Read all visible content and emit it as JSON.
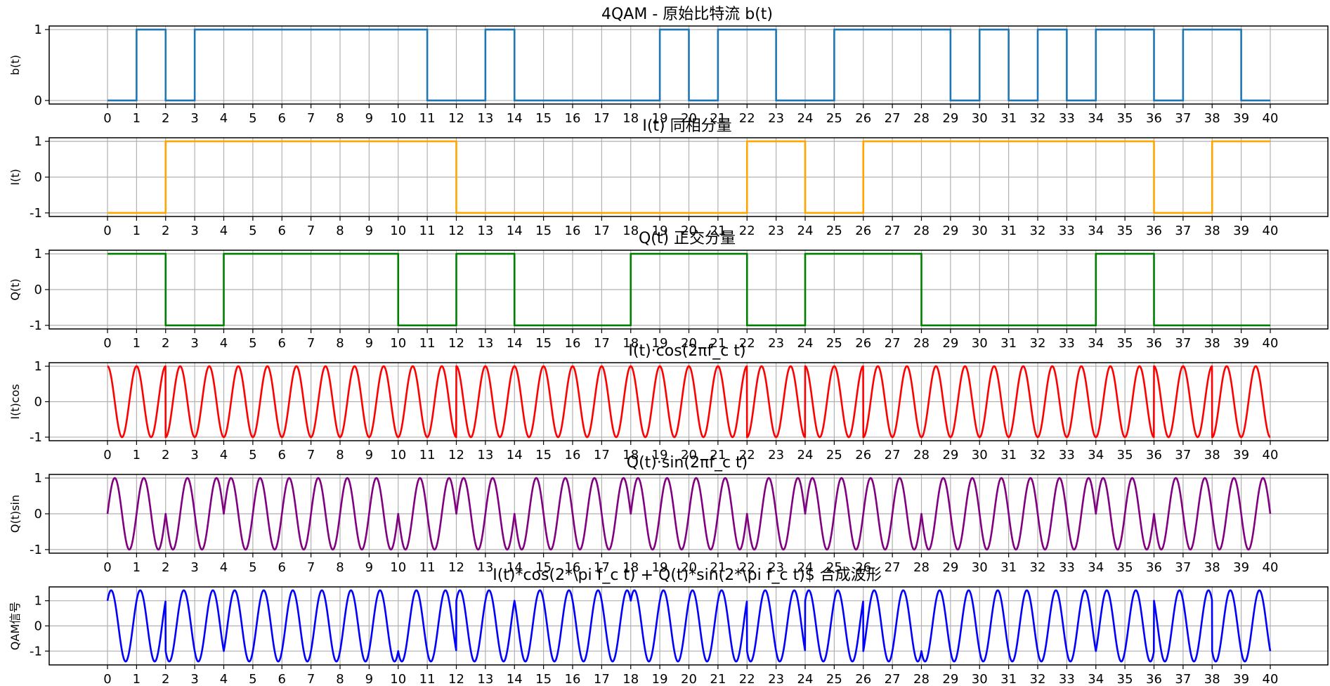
{
  "chart_data": [
    {
      "type": "line",
      "title": "4QAM - 原始比特流 b(t)",
      "ylabel": "b(t)",
      "xlim": [
        0,
        40
      ],
      "ylim": [
        -0.05,
        1.05
      ],
      "xticks": [
        0,
        1,
        2,
        3,
        4,
        5,
        6,
        7,
        8,
        9,
        10,
        11,
        12,
        13,
        14,
        15,
        16,
        17,
        18,
        19,
        20,
        21,
        22,
        23,
        24,
        25,
        26,
        27,
        28,
        29,
        30,
        31,
        32,
        33,
        34,
        35,
        36,
        37,
        38,
        39,
        40
      ],
      "yticks": [
        0,
        1
      ],
      "ytick_labels": [
        "0",
        "1"
      ],
      "grid": true,
      "color": "#1f77b4",
      "series": [
        {
          "kind": "step",
          "values": [
            0,
            1,
            0,
            1,
            1,
            1,
            1,
            1,
            1,
            1,
            1,
            0,
            0,
            1,
            0,
            0,
            0,
            0,
            0,
            1,
            0,
            1,
            1,
            0,
            0,
            1,
            1,
            1,
            1,
            0,
            1,
            0,
            1,
            0,
            1,
            1,
            0,
            1,
            1,
            0
          ]
        }
      ]
    },
    {
      "type": "line",
      "title": "I(t) 同相分量",
      "ylabel": "I(t)",
      "xlim": [
        0,
        40
      ],
      "ylim": [
        -1.1,
        1.1
      ],
      "xticks": [
        0,
        1,
        2,
        3,
        4,
        5,
        6,
        7,
        8,
        9,
        10,
        11,
        12,
        13,
        14,
        15,
        16,
        17,
        18,
        19,
        20,
        21,
        22,
        23,
        24,
        25,
        26,
        27,
        28,
        29,
        30,
        31,
        32,
        33,
        34,
        35,
        36,
        37,
        38,
        39,
        40
      ],
      "yticks": [
        -1,
        0,
        1
      ],
      "ytick_labels": [
        "-1",
        "0",
        "1"
      ],
      "grid": true,
      "color": "#ffa500",
      "series": [
        {
          "kind": "step",
          "values": [
            -1,
            -1,
            1,
            1,
            1,
            1,
            1,
            1,
            1,
            1,
            1,
            1,
            -1,
            -1,
            -1,
            -1,
            -1,
            -1,
            -1,
            -1,
            -1,
            -1,
            1,
            1,
            -1,
            -1,
            1,
            1,
            1,
            1,
            1,
            1,
            1,
            1,
            1,
            1,
            -1,
            -1,
            1,
            1
          ]
        }
      ]
    },
    {
      "type": "line",
      "title": "Q(t) 正交分量",
      "ylabel": "Q(t)",
      "xlim": [
        0,
        40
      ],
      "ylim": [
        -1.1,
        1.1
      ],
      "xticks": [
        0,
        1,
        2,
        3,
        4,
        5,
        6,
        7,
        8,
        9,
        10,
        11,
        12,
        13,
        14,
        15,
        16,
        17,
        18,
        19,
        20,
        21,
        22,
        23,
        24,
        25,
        26,
        27,
        28,
        29,
        30,
        31,
        32,
        33,
        34,
        35,
        36,
        37,
        38,
        39,
        40
      ],
      "yticks": [
        -1,
        0,
        1
      ],
      "ytick_labels": [
        "-1",
        "0",
        "1"
      ],
      "grid": true,
      "color": "#008000",
      "series": [
        {
          "kind": "step",
          "values": [
            1,
            1,
            -1,
            -1,
            1,
            1,
            1,
            1,
            1,
            1,
            -1,
            -1,
            1,
            1,
            -1,
            -1,
            -1,
            -1,
            1,
            1,
            1,
            1,
            -1,
            -1,
            1,
            1,
            1,
            1,
            -1,
            -1,
            -1,
            -1,
            -1,
            -1,
            1,
            1,
            -1,
            -1,
            -1,
            -1
          ]
        }
      ]
    },
    {
      "type": "line",
      "title": "I(t)·cos(2πf_c t)",
      "ylabel": "I(t)cos",
      "xlim": [
        0,
        40
      ],
      "ylim": [
        -1.1,
        1.1
      ],
      "xticks": [
        0,
        1,
        2,
        3,
        4,
        5,
        6,
        7,
        8,
        9,
        10,
        11,
        12,
        13,
        14,
        15,
        16,
        17,
        18,
        19,
        20,
        21,
        22,
        23,
        24,
        25,
        26,
        27,
        28,
        29,
        30,
        31,
        32,
        33,
        34,
        35,
        36,
        37,
        38,
        39,
        40
      ],
      "yticks": [
        -1,
        0,
        1
      ],
      "ytick_labels": [
        "-1",
        "0",
        "1"
      ],
      "grid": true,
      "color": "#ff0000",
      "series": [
        {
          "kind": "modulated",
          "carrier": "cos",
          "fc": 1,
          "amplitude": "I(t)"
        }
      ]
    },
    {
      "type": "line",
      "title": "Q(t)·sin(2πf_c t)",
      "ylabel": "Q(t)sin",
      "xlim": [
        0,
        40
      ],
      "ylim": [
        -1.1,
        1.1
      ],
      "xticks": [
        0,
        1,
        2,
        3,
        4,
        5,
        6,
        7,
        8,
        9,
        10,
        11,
        12,
        13,
        14,
        15,
        16,
        17,
        18,
        19,
        20,
        21,
        22,
        23,
        24,
        25,
        26,
        27,
        28,
        29,
        30,
        31,
        32,
        33,
        34,
        35,
        36,
        37,
        38,
        39,
        40
      ],
      "yticks": [
        -1,
        0,
        1
      ],
      "ytick_labels": [
        "-1",
        "0",
        "1"
      ],
      "grid": true,
      "color": "#800080",
      "series": [
        {
          "kind": "modulated",
          "carrier": "sin",
          "fc": 1,
          "amplitude": "Q(t)"
        }
      ]
    },
    {
      "type": "line",
      "title": "I(t)*cos(2*\\pi f_c t) + Q(t)*sin(2*\\pi f_c t)$ 合成波形",
      "ylabel": "QAM信号",
      "xlim": [
        0,
        40
      ],
      "ylim": [
        -1.55,
        1.55
      ],
      "xticks": [
        0,
        1,
        2,
        3,
        4,
        5,
        6,
        7,
        8,
        9,
        10,
        11,
        12,
        13,
        14,
        15,
        16,
        17,
        18,
        19,
        20,
        21,
        22,
        23,
        24,
        25,
        26,
        27,
        28,
        29,
        30,
        31,
        32,
        33,
        34,
        35,
        36,
        37,
        38,
        39,
        40
      ],
      "yticks": [
        -1,
        0,
        1
      ],
      "ytick_labels": [
        "-1",
        "0",
        "1"
      ],
      "grid": true,
      "color": "#0000ff",
      "series": [
        {
          "kind": "composite",
          "fc": 1,
          "terms": [
            "I(t)cos",
            "Q(t)sin"
          ]
        }
      ]
    }
  ]
}
